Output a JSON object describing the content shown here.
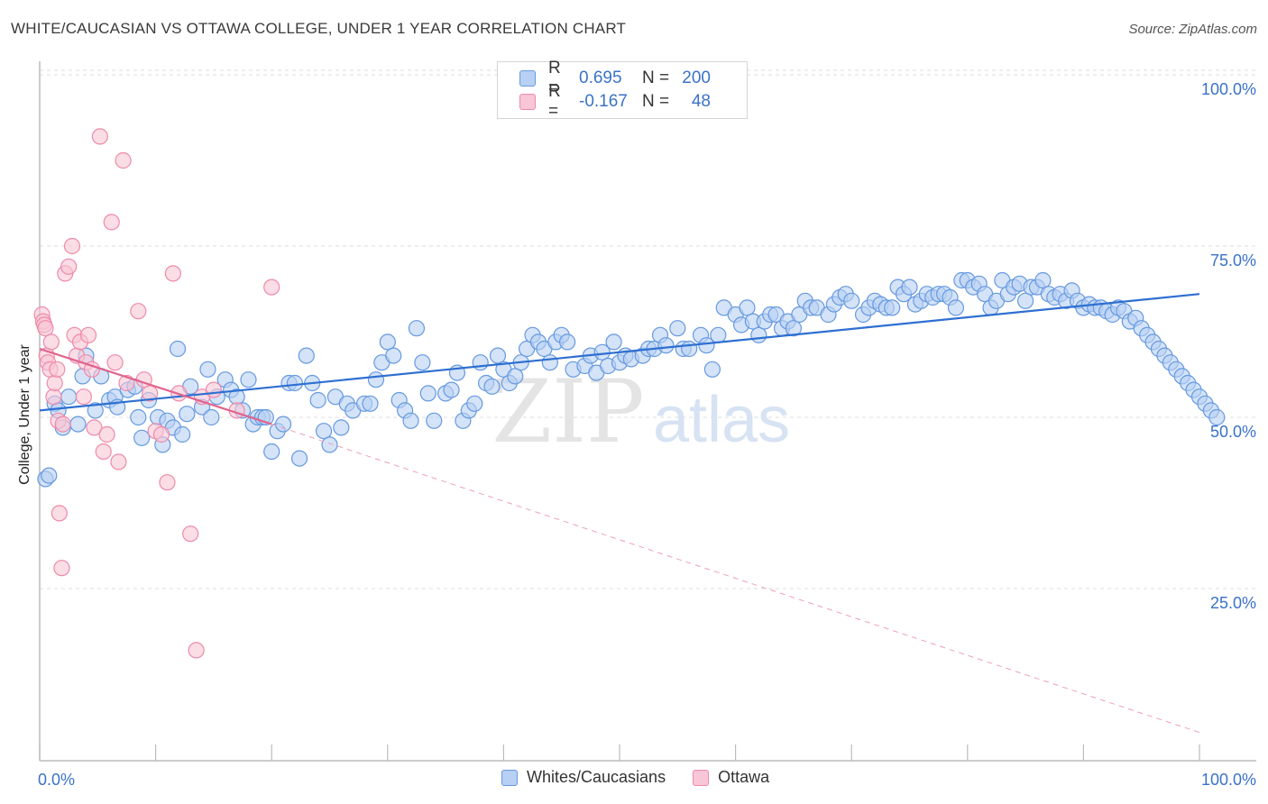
{
  "title": "WHITE/CAUCASIAN VS OTTAWA COLLEGE, UNDER 1 YEAR CORRELATION CHART",
  "source": "Source: ZipAtlas.com",
  "watermark": {
    "zip": "ZIP",
    "atlas": "atlas"
  },
  "legend": {
    "rows": [
      {
        "r_label": "R =",
        "r_value": "0.695",
        "n_label": "N =",
        "n_value": "200",
        "color": "#6699e0",
        "fill": "#b8d0f4"
      },
      {
        "r_label": "R =",
        "r_value": "-0.167",
        "n_label": "N =",
        "n_value": "48",
        "color": "#ee8aaa",
        "fill": "#f8c6d6"
      }
    ]
  },
  "bottom_legend": [
    {
      "label": "Whites/Caucasians",
      "color": "#6699e0",
      "fill": "#b8d0f4"
    },
    {
      "label": "Ottawa",
      "color": "#ee8aaa",
      "fill": "#f8c6d6"
    }
  ],
  "chart_data": {
    "type": "scatter",
    "title": "WHITE/CAUCASIAN VS OTTAWA COLLEGE, UNDER 1 YEAR CORRELATION CHART",
    "xlabel": "",
    "ylabel": "College, Under 1 year",
    "xlim": [
      0,
      100
    ],
    "ylim": [
      0,
      105
    ],
    "x_tick_labels": [
      {
        "value": 0,
        "label": "0.0%"
      },
      {
        "value": 100,
        "label": "100.0%"
      }
    ],
    "y_tick_labels": [
      {
        "value": 25,
        "label": "25.0%"
      },
      {
        "value": 50,
        "label": "50.0%"
      },
      {
        "value": 75,
        "label": "75.0%"
      },
      {
        "value": 100,
        "label": "100.0%"
      }
    ],
    "series": [
      {
        "name": "Whites/Caucasians",
        "color": "#6699e0",
        "fill": "#b8d0f4",
        "trend": {
          "x": [
            0,
            100
          ],
          "y": [
            51,
            68
          ]
        },
        "points": [
          [
            0.5,
            41
          ],
          [
            0.8,
            41.5
          ],
          [
            1.3,
            52
          ],
          [
            1.6,
            51
          ],
          [
            2.0,
            48.5
          ],
          [
            2.5,
            53
          ],
          [
            3.3,
            49
          ],
          [
            3.7,
            56
          ],
          [
            4.0,
            59
          ],
          [
            4.8,
            51
          ],
          [
            5.3,
            56
          ],
          [
            6.0,
            52.5
          ],
          [
            6.5,
            53
          ],
          [
            6.7,
            51.5
          ],
          [
            7.6,
            54
          ],
          [
            8.2,
            54.5
          ],
          [
            8.5,
            50
          ],
          [
            8.8,
            47
          ],
          [
            9.4,
            52.5
          ],
          [
            10.2,
            50
          ],
          [
            10.6,
            46
          ],
          [
            11.0,
            49.5
          ],
          [
            11.5,
            48.5
          ],
          [
            11.9,
            60
          ],
          [
            12.3,
            47.5
          ],
          [
            12.7,
            50.5
          ],
          [
            13.0,
            54.5
          ],
          [
            14.0,
            51.5
          ],
          [
            14.5,
            57
          ],
          [
            14.8,
            50
          ],
          [
            15.3,
            53
          ],
          [
            16.0,
            55.5
          ],
          [
            16.5,
            54
          ],
          [
            17.0,
            53
          ],
          [
            17.5,
            51
          ],
          [
            18.0,
            55.5
          ],
          [
            18.4,
            49
          ],
          [
            18.8,
            50
          ],
          [
            19.2,
            50
          ],
          [
            19.5,
            50
          ],
          [
            20.0,
            45
          ],
          [
            20.5,
            48
          ],
          [
            21.0,
            49
          ],
          [
            21.5,
            55
          ],
          [
            22.0,
            55
          ],
          [
            22.4,
            44
          ],
          [
            23.0,
            59
          ],
          [
            23.5,
            55
          ],
          [
            24.0,
            52.5
          ],
          [
            24.5,
            48
          ],
          [
            25.0,
            46
          ],
          [
            25.5,
            53
          ],
          [
            26.0,
            48.5
          ],
          [
            26.5,
            52
          ],
          [
            27.0,
            51
          ],
          [
            28.0,
            52
          ],
          [
            28.5,
            52
          ],
          [
            29.0,
            55.5
          ],
          [
            29.5,
            58
          ],
          [
            30.0,
            61
          ],
          [
            30.5,
            59
          ],
          [
            31.0,
            52.5
          ],
          [
            31.5,
            51
          ],
          [
            32.0,
            49.5
          ],
          [
            32.5,
            63
          ],
          [
            33.0,
            58
          ],
          [
            33.5,
            53.5
          ],
          [
            34.0,
            49.5
          ],
          [
            35.0,
            53.5
          ],
          [
            35.5,
            54
          ],
          [
            36.0,
            56.5
          ],
          [
            36.5,
            49.5
          ],
          [
            37.0,
            51
          ],
          [
            37.5,
            52
          ],
          [
            38.0,
            58
          ],
          [
            38.5,
            55
          ],
          [
            39.0,
            54.5
          ],
          [
            39.5,
            59
          ],
          [
            40.0,
            57
          ],
          [
            40.5,
            55
          ],
          [
            41.0,
            56
          ],
          [
            41.5,
            58
          ],
          [
            42.0,
            60
          ],
          [
            42.5,
            62
          ],
          [
            43.0,
            61
          ],
          [
            43.5,
            60
          ],
          [
            44.0,
            58
          ],
          [
            44.5,
            61
          ],
          [
            45.0,
            62
          ],
          [
            45.5,
            61
          ],
          [
            46.0,
            57
          ],
          [
            47.0,
            57.5
          ],
          [
            47.5,
            59
          ],
          [
            48.0,
            56.5
          ],
          [
            48.5,
            59.5
          ],
          [
            49.0,
            57.5
          ],
          [
            49.5,
            61
          ],
          [
            50.0,
            58
          ],
          [
            50.5,
            59
          ],
          [
            51.0,
            58.5
          ],
          [
            52.0,
            59
          ],
          [
            52.5,
            60
          ],
          [
            53.0,
            60
          ],
          [
            53.5,
            62
          ],
          [
            54.0,
            60.5
          ],
          [
            55.0,
            63
          ],
          [
            55.5,
            60
          ],
          [
            56.0,
            60
          ],
          [
            57.0,
            62
          ],
          [
            57.5,
            60.5
          ],
          [
            58.0,
            57
          ],
          [
            58.5,
            62
          ],
          [
            59.0,
            66
          ],
          [
            60.0,
            65
          ],
          [
            60.5,
            63.5
          ],
          [
            61.0,
            66
          ],
          [
            61.5,
            64
          ],
          [
            62.0,
            62
          ],
          [
            62.5,
            64
          ],
          [
            63.0,
            65
          ],
          [
            63.5,
            65
          ],
          [
            64.0,
            63
          ],
          [
            64.5,
            64
          ],
          [
            65.0,
            63
          ],
          [
            65.5,
            65
          ],
          [
            66.0,
            67
          ],
          [
            66.5,
            66
          ],
          [
            67.0,
            66
          ],
          [
            68.0,
            65
          ],
          [
            68.5,
            66.5
          ],
          [
            69.0,
            67.5
          ],
          [
            69.5,
            68
          ],
          [
            70.0,
            67
          ],
          [
            71.0,
            65
          ],
          [
            71.5,
            66
          ],
          [
            72.0,
            67
          ],
          [
            72.5,
            66.5
          ],
          [
            73.0,
            66
          ],
          [
            73.5,
            66
          ],
          [
            74.0,
            69
          ],
          [
            74.5,
            68
          ],
          [
            75.0,
            69
          ],
          [
            75.5,
            66.5
          ],
          [
            76.0,
            67
          ],
          [
            76.5,
            68
          ],
          [
            77.0,
            67.5
          ],
          [
            77.5,
            68
          ],
          [
            78.0,
            68
          ],
          [
            78.5,
            67.5
          ],
          [
            79.0,
            66
          ],
          [
            79.5,
            70
          ],
          [
            80.0,
            70
          ],
          [
            80.5,
            69
          ],
          [
            81.0,
            69.5
          ],
          [
            81.5,
            68
          ],
          [
            82.0,
            66
          ],
          [
            82.5,
            67
          ],
          [
            83.0,
            70
          ],
          [
            83.5,
            68
          ],
          [
            84.0,
            69
          ],
          [
            84.5,
            69.5
          ],
          [
            85.0,
            67
          ],
          [
            85.5,
            69
          ],
          [
            86.0,
            69
          ],
          [
            86.5,
            70
          ],
          [
            87.0,
            68
          ],
          [
            87.5,
            67.5
          ],
          [
            88.0,
            68
          ],
          [
            88.5,
            67
          ],
          [
            89.0,
            68.5
          ],
          [
            89.5,
            67
          ],
          [
            90.0,
            66
          ],
          [
            90.5,
            66.5
          ],
          [
            91.0,
            66
          ],
          [
            91.5,
            66
          ],
          [
            92.0,
            65.5
          ],
          [
            92.5,
            65
          ],
          [
            93.0,
            66
          ],
          [
            93.5,
            65.5
          ],
          [
            94.0,
            64
          ],
          [
            94.5,
            64.5
          ],
          [
            95.0,
            63
          ],
          [
            95.5,
            62
          ],
          [
            96.0,
            61
          ],
          [
            96.5,
            60
          ],
          [
            97.0,
            59
          ],
          [
            97.5,
            58
          ],
          [
            98.0,
            57
          ],
          [
            98.5,
            56
          ],
          [
            99.0,
            55
          ],
          [
            99.5,
            54
          ],
          [
            100.0,
            53
          ],
          [
            100.5,
            52
          ],
          [
            101.0,
            51
          ],
          [
            101.5,
            50
          ]
        ]
      },
      {
        "name": "Ottawa",
        "color": "#ee8aaa",
        "fill": "#f8c6d6",
        "trend": {
          "x": [
            0,
            20
          ],
          "y": [
            60,
            49
          ]
        },
        "trend_dashed": {
          "x": [
            20,
            100
          ],
          "y": [
            49,
            4
          ]
        },
        "points": [
          [
            0.2,
            65
          ],
          [
            0.3,
            64
          ],
          [
            0.4,
            63.5
          ],
          [
            0.5,
            63
          ],
          [
            0.6,
            59
          ],
          [
            0.7,
            58
          ],
          [
            0.9,
            57
          ],
          [
            1.0,
            61
          ],
          [
            1.2,
            53
          ],
          [
            1.3,
            55
          ],
          [
            1.5,
            57
          ],
          [
            1.6,
            49.5
          ],
          [
            1.7,
            36
          ],
          [
            1.9,
            28
          ],
          [
            2.0,
            49
          ],
          [
            2.2,
            71
          ],
          [
            2.5,
            72
          ],
          [
            2.8,
            75
          ],
          [
            3.0,
            62
          ],
          [
            3.2,
            59
          ],
          [
            3.5,
            61
          ],
          [
            3.8,
            53
          ],
          [
            4.0,
            58
          ],
          [
            4.2,
            62
          ],
          [
            4.5,
            57
          ],
          [
            4.7,
            48.5
          ],
          [
            5.2,
            91
          ],
          [
            5.5,
            45
          ],
          [
            5.8,
            47.5
          ],
          [
            6.2,
            78.5
          ],
          [
            6.5,
            58
          ],
          [
            6.8,
            43.5
          ],
          [
            7.2,
            87.5
          ],
          [
            7.5,
            55
          ],
          [
            8.5,
            65.5
          ],
          [
            9.0,
            55.5
          ],
          [
            9.5,
            53.5
          ],
          [
            10.0,
            48
          ],
          [
            10.5,
            47.5
          ],
          [
            11.0,
            40.5
          ],
          [
            11.5,
            71
          ],
          [
            12.0,
            53.5
          ],
          [
            13.0,
            33
          ],
          [
            13.5,
            16
          ],
          [
            14.0,
            53
          ],
          [
            15.0,
            54
          ],
          [
            17.0,
            51
          ],
          [
            20.0,
            69
          ]
        ]
      }
    ]
  }
}
